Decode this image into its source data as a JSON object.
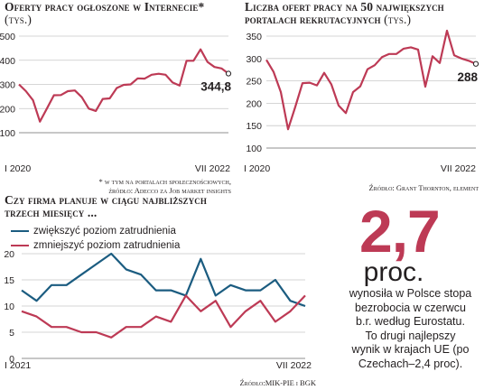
{
  "colors": {
    "red": "#bd3a55",
    "blue": "#1b5c80",
    "grid": "#c8c8c8",
    "big_number": "#bd3a55"
  },
  "chart_data": [
    {
      "type": "line",
      "title": "Oferty pracy ogłoszone w Internecie*",
      "unit": "(tys.)",
      "y_ticks": [
        "500",
        "400",
        "300",
        "200",
        "100"
      ],
      "ylim": [
        100,
        500
      ],
      "x_labels": [
        "I 2020",
        "VII 2022"
      ],
      "end_label": "344,8",
      "footnote_lines": [
        "* w tym na portalach społecznościowych,",
        "źródło: Adecco za Job market insights"
      ],
      "series": [
        {
          "values": [
            300,
            272,
            235,
            146,
            200,
            255,
            256,
            272,
            275,
            247,
            200,
            190,
            240,
            242,
            285,
            298,
            300,
            325,
            324,
            340,
            344,
            340,
            308,
            295,
            398,
            398,
            445,
            393,
            372,
            366,
            344.8
          ]
        }
      ]
    },
    {
      "type": "line",
      "title": "Liczba ofert pracy na 50 największych portalach rekrutacyjnych",
      "unit": "(tys.)",
      "y_ticks": [
        "350",
        "300",
        "250",
        "200",
        "150",
        "100"
      ],
      "ylim": [
        100,
        350
      ],
      "x_labels": [
        "I 2020",
        "VII 2022"
      ],
      "end_label": "288",
      "footnote_lines": [
        "Źródło: Grant Thornton, element"
      ],
      "series": [
        {
          "values": [
            297,
            270,
            225,
            142,
            192,
            245,
            246,
            240,
            268,
            242,
            195,
            178,
            225,
            238,
            276,
            285,
            303,
            310,
            310,
            322,
            325,
            320,
            237,
            305,
            290,
            362,
            307,
            300,
            295,
            288
          ]
        }
      ]
    },
    {
      "type": "line",
      "title": "Czy firma planuje w ciągu najbliższych trzech miesięcy ...",
      "y_ticks": [
        "20",
        "15",
        "10",
        "5",
        "0"
      ],
      "ylim": [
        0,
        20
      ],
      "x_labels": [
        "I 2021",
        "VII 2022"
      ],
      "footnote_lines": [
        "Źródło:MIK-PIE i BGK"
      ],
      "series": [
        {
          "name": "zwiększyć poziom zatrudnienia",
          "values": [
            13,
            11,
            14,
            14,
            16,
            18,
            20,
            17,
            16,
            13,
            13,
            12,
            19,
            12,
            14,
            13,
            13,
            15,
            11,
            10
          ]
        },
        {
          "name": "zmniejszyć poziom zatrudnienia",
          "values": [
            9,
            8,
            6,
            6,
            5,
            5,
            4,
            6,
            6,
            8,
            7,
            12,
            9,
            11,
            6,
            9,
            11,
            7,
            9,
            12
          ]
        }
      ]
    }
  ],
  "callout": {
    "number": "2,7",
    "unit": "proc.",
    "lines": [
      "wynosiła w Polsce stopa",
      "bezrobocia w czerwcu",
      "b.r. według Eurostatu.",
      "To drugi najlepszy",
      "wynik w krajach UE (po",
      "Czechach–2,4 proc)."
    ]
  }
}
